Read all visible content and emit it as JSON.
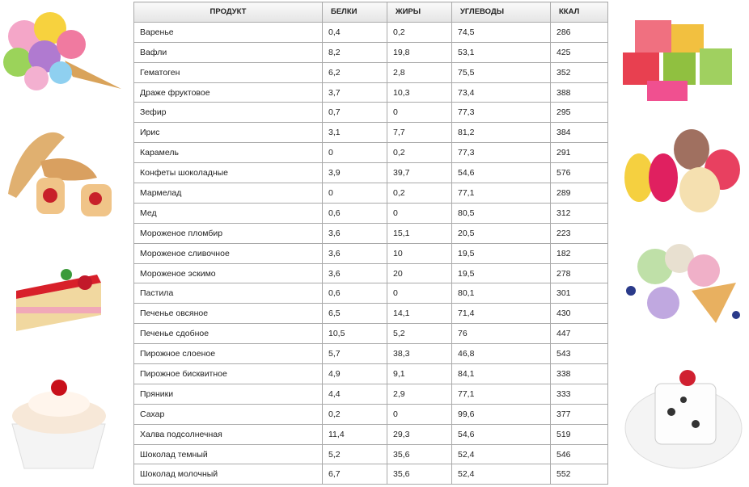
{
  "table": {
    "header": [
      "ПРОДУКТ",
      "БЕЛКИ",
      "ЖИРЫ",
      "УГЛЕВОДЫ",
      "ККАЛ"
    ],
    "rows": [
      [
        "Варенье",
        "0,4",
        "0,2",
        "74,5",
        "286"
      ],
      [
        "Вафли",
        "8,2",
        "19,8",
        "53,1",
        "425"
      ],
      [
        "Гематоген",
        "6,2",
        "2,8",
        "75,5",
        "352"
      ],
      [
        "Драже фруктовое",
        "3,7",
        "10,3",
        "73,4",
        "388"
      ],
      [
        "Зефир",
        "0,7",
        "0",
        "77,3",
        "295"
      ],
      [
        "Ирис",
        "3,1",
        "7,7",
        "81,2",
        "384"
      ],
      [
        "Карамель",
        "0",
        "0,2",
        "77,3",
        "291"
      ],
      [
        "Конфеты шоколадные",
        "3,9",
        "39,7",
        "54,6",
        "576"
      ],
      [
        "Мармелад",
        "0",
        "0,2",
        "77,1",
        "289"
      ],
      [
        "Мед",
        "0,6",
        "0",
        "80,5",
        "312"
      ],
      [
        "Мороженое пломбир",
        "3,6",
        "15,1",
        "20,5",
        "223"
      ],
      [
        "Мороженое сливочное",
        "3,6",
        "10",
        "19,5",
        "182"
      ],
      [
        "Мороженое эскимо",
        "3,6",
        "20",
        "19,5",
        "278"
      ],
      [
        "Пастила",
        "0,6",
        "0",
        "80,1",
        "301"
      ],
      [
        "Печенье овсяное",
        "6,5",
        "14,1",
        "71,4",
        "430"
      ],
      [
        "Печенье сдобное",
        "10,5",
        "5,2",
        "76",
        "447"
      ],
      [
        "Пирожное слоеное",
        "5,7",
        "38,3",
        "46,8",
        "543"
      ],
      [
        "Пирожное бисквитное",
        "4,9",
        "9,1",
        "84,1",
        "338"
      ],
      [
        "Пряники",
        "4,4",
        "2,9",
        "77,1",
        "333"
      ],
      [
        "Сахар",
        "0,2",
        "0",
        "99,6",
        "377"
      ],
      [
        "Халва подсолнечная",
        "11,4",
        "29,3",
        "54,6",
        "519"
      ],
      [
        "Шоколад темный",
        "5,2",
        "35,6",
        "52,4",
        "546"
      ],
      [
        "Шоколад молочный",
        "6,7",
        "35,6",
        "52,4",
        "552"
      ]
    ]
  }
}
